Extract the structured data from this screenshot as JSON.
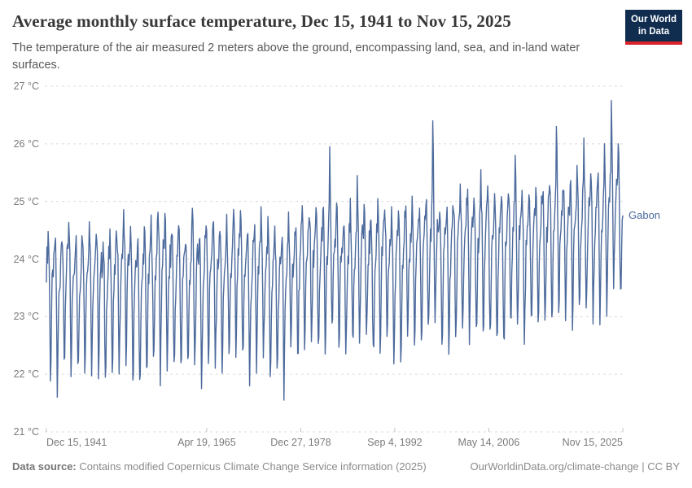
{
  "header": {
    "title": "Average monthly surface temperature, Dec 15, 1941 to Nov 15, 2025",
    "subtitle": "The temperature of the air measured 2 meters above the ground, encompassing land, sea, and in-land water surfaces."
  },
  "logo": {
    "line1": "Our World",
    "line2": "in Data",
    "bg_color": "#102d50",
    "accent_color": "#d8232a"
  },
  "chart_data": {
    "type": "line",
    "title": "Average monthly surface temperature, Dec 15, 1941 to Nov 15, 2025",
    "entity_label": "Gabon",
    "line_color": "#4c6a9c",
    "grid_color": "#dcdcdc",
    "grid": true,
    "y_axis": {
      "unit": "°C",
      "range": [
        21,
        27
      ],
      "ticks": [
        {
          "value": 21,
          "label": "21 °C"
        },
        {
          "value": 22,
          "label": "22 °C"
        },
        {
          "value": 23,
          "label": "23 °C"
        },
        {
          "value": 24,
          "label": "24 °C"
        },
        {
          "value": 25,
          "label": "25 °C"
        },
        {
          "value": 26,
          "label": "26 °C"
        },
        {
          "value": 27,
          "label": "27 °C"
        }
      ]
    },
    "x_axis": {
      "range": [
        1941.9583,
        2025.875
      ],
      "ticks": [
        {
          "decimal_year": 1941.9583,
          "label": "Dec 15, 1941",
          "align": "left"
        },
        {
          "decimal_year": 1965.2986,
          "label": "Apr 19, 1965",
          "align": "center"
        },
        {
          "decimal_year": 1978.989,
          "label": "Dec 27, 1978",
          "align": "center"
        },
        {
          "decimal_year": 1992.678,
          "label": "Sep 4, 1992",
          "align": "center"
        },
        {
          "decimal_year": 2006.367,
          "label": "May 14, 2006",
          "align": "center"
        },
        {
          "decimal_year": 2025.874,
          "label": "Nov 15, 2025",
          "align": "right"
        }
      ]
    },
    "series": {
      "name": "Gabon",
      "start_month": "1941-12",
      "end_month": "2025-11",
      "annual_means_start_year": 1942,
      "annual_means_c": [
        23.45,
        23.3,
        23.55,
        23.5,
        23.4,
        23.55,
        23.6,
        23.5,
        23.3,
        23.45,
        23.55,
        23.7,
        23.35,
        23.3,
        23.45,
        23.6,
        23.75,
        23.6,
        23.5,
        23.55,
        23.45,
        23.65,
        23.45,
        23.7,
        23.6,
        23.5,
        23.55,
        23.75,
        23.65,
        23.45,
        23.6,
        23.7,
        23.5,
        23.45,
        23.4,
        23.7,
        23.65,
        23.8,
        23.9,
        23.75,
        23.85,
        24.05,
        23.8,
        23.75,
        23.85,
        24.0,
        23.9,
        23.7,
        23.95,
        23.85,
        23.7,
        23.85,
        23.9,
        23.95,
        23.9,
        24.1,
        24.3,
        23.9,
        23.85,
        24.05,
        24.15,
        24.15,
        24.1,
        24.2,
        24.15,
        24.1,
        24.0,
        24.2,
        24.35,
        24.1,
        24.2,
        24.25,
        24.3,
        24.45,
        24.55,
        24.35,
        24.3,
        24.45,
        24.5,
        24.4,
        24.45,
        24.65,
        24.95,
        24.75
      ],
      "monthly_offsets_c": [
        0.55,
        0.7,
        1.0,
        0.85,
        0.4,
        -0.55,
        -1.4,
        -1.15,
        -0.4,
        0.05,
        0.2,
        0.4
      ],
      "noise_amplitude_c": 0.25,
      "monthly_overrides_c": {
        "1941-12": 23.6,
        "1943-07": 21.6,
        "1950-07": 21.95,
        "1954-07": 21.9,
        "1958-07": 21.8,
        "1964-07": 21.75,
        "1971-07": 21.8,
        "1976-07": 21.55,
        "1983-03": 25.95,
        "1987-03": 25.45,
        "1998-03": 26.4,
        "1998-04": 25.85,
        "2005-03": 25.55,
        "2010-03": 25.8,
        "2016-03": 26.3,
        "2016-04": 25.9,
        "2020-03": 26.1,
        "2023-03": 26.0,
        "2024-03": 26.75,
        "2024-04": 26.1,
        "2025-03": 26.0,
        "2025-11": 24.75
      }
    }
  },
  "footer": {
    "source_label": "Data source:",
    "source_text": " Contains modified Copernicus Climate Change Service information (2025)",
    "credit_text": "OurWorldinData.org/climate-change | CC BY"
  }
}
